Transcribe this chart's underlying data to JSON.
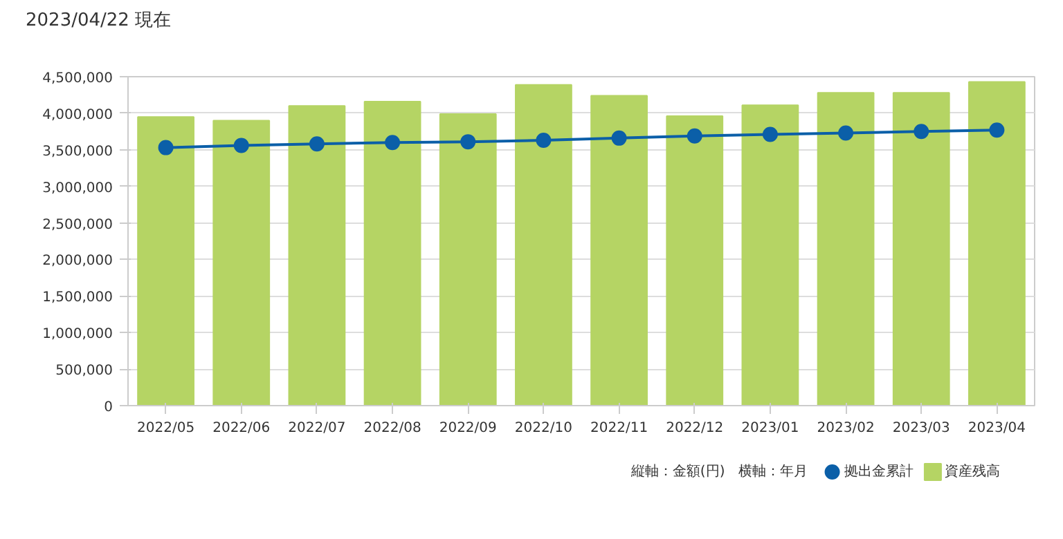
{
  "chart_data": {
    "type": "bar",
    "title": "2023/04/22 現在",
    "categories": [
      "2022/05",
      "2022/06",
      "2022/07",
      "2022/08",
      "2022/09",
      "2022/10",
      "2022/11",
      "2022/12",
      "2023/01",
      "2023/02",
      "2023/03",
      "2023/04"
    ],
    "series": [
      {
        "name": "資産残高",
        "color": "#b5d464",
        "values": [
          3950000,
          3900000,
          4100000,
          4160000,
          3990000,
          4390000,
          4240000,
          3960000,
          4110000,
          4280000,
          4280000,
          4430000
        ]
      },
      {
        "name": "拠出金累計",
        "type": "line",
        "color": "#0b5fa8",
        "marker": "circle",
        "values": [
          3530000,
          3560000,
          3580000,
          3600000,
          3610000,
          3630000,
          3660000,
          3690000,
          3710000,
          3730000,
          3750000,
          3770000
        ]
      }
    ],
    "ylim": [
      0,
      4500000
    ],
    "yticks": [
      {
        "value": 0,
        "label": "0"
      },
      {
        "value": 500000,
        "label": "500,000"
      },
      {
        "value": 1000000,
        "label": "1,000,000"
      },
      {
        "value": 1500000,
        "label": "1,500,000"
      },
      {
        "value": 2000000,
        "label": "2,000,000"
      },
      {
        "value": 2500000,
        "label": "2,500,000"
      },
      {
        "value": 3000000,
        "label": "3,000,000"
      },
      {
        "value": 3500000,
        "label": "3,500,000"
      },
      {
        "value": 4000000,
        "label": "4,000,000"
      },
      {
        "value": 4500000,
        "label": "4,500,000"
      }
    ],
    "grid": "y",
    "legend": "bottom right",
    "annotations": [
      "縦軸：金額(円)　横軸：年月"
    ]
  }
}
